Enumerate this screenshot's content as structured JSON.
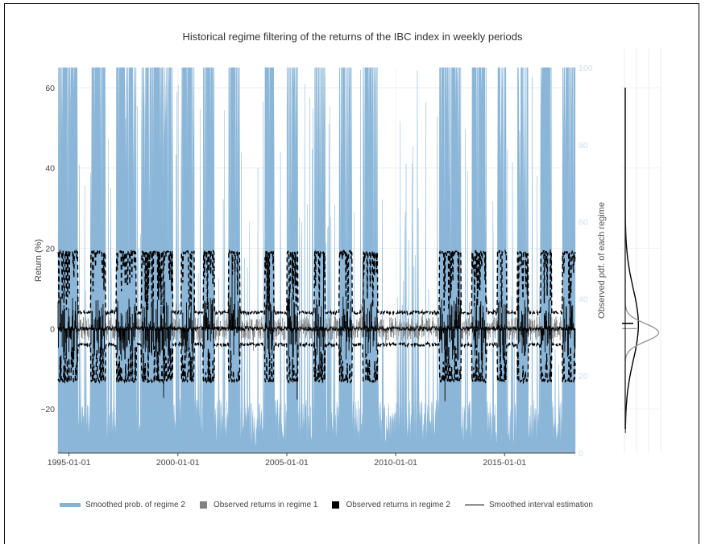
{
  "chart_data": {
    "type": "area",
    "title": "Historical regime filtering of the returns of the IBC index in weekly periods",
    "xlabel": "",
    "ylabel": "Return (%)",
    "y2label": "Observed pdf. of each regime",
    "x_ticks": [
      "1995-01-01",
      "2000-01-01",
      "2005-01-01",
      "2010-01-01",
      "2015-01-01"
    ],
    "x_range": [
      "1994-07-01",
      "2018-04-01"
    ],
    "y_ticks": [
      60,
      40,
      20,
      0,
      -20
    ],
    "y_tick_labels": [
      "60",
      "40",
      "20",
      "0",
      "−20"
    ],
    "ylim": [
      -31,
      65
    ],
    "y2_ticks": [
      100,
      80,
      60,
      40,
      20,
      0
    ],
    "y2lim": [
      0,
      100
    ],
    "grid": true,
    "legend_position": "bottom",
    "colors": {
      "regime2_prob": "#85b3d6",
      "regime1_returns": "#808080",
      "regime2_returns": "#000000",
      "interval": "#000000"
    },
    "series": [
      {
        "name": "Smoothed prob. of regime 2",
        "kind": "area",
        "axis": "y2",
        "approx_high_prob_periods": [
          [
            "1994-07-01",
            "1995-06-01"
          ],
          [
            "1996-01-01",
            "1996-09-01"
          ],
          [
            "1997-03-01",
            "1998-02-01"
          ],
          [
            "1998-05-01",
            "1999-10-01"
          ],
          [
            "2000-03-01",
            "2000-10-01"
          ],
          [
            "2001-03-01",
            "2001-09-01"
          ],
          [
            "2002-05-01",
            "2002-11-01"
          ],
          [
            "2004-01-01",
            "2004-06-01"
          ],
          [
            "2005-01-01",
            "2005-07-01"
          ],
          [
            "2006-04-01",
            "2006-10-01"
          ],
          [
            "2007-06-01",
            "2008-01-01"
          ],
          [
            "2008-07-01",
            "2009-03-01"
          ],
          [
            "2012-01-01",
            "2013-01-01"
          ],
          [
            "2013-07-01",
            "2014-03-01"
          ],
          [
            "2014-09-01",
            "2015-02-01"
          ],
          [
            "2015-08-01",
            "2016-02-01"
          ],
          [
            "2016-09-01",
            "2017-03-01"
          ],
          [
            "2017-09-01",
            "2018-04-01"
          ]
        ]
      },
      {
        "name": "Observed returns in regime 1",
        "kind": "bar",
        "axis": "y",
        "typical_abs_return": 3
      },
      {
        "name": "Observed returns in regime 2",
        "kind": "bar",
        "axis": "y",
        "typical_abs_return": 8
      },
      {
        "name": "Smoothed interval estimation",
        "kind": "dashed-band",
        "axis": "y",
        "regime1_band": [
          -4,
          4
        ],
        "regime2_band": [
          -13,
          19
        ]
      }
    ],
    "side_panel": {
      "type": "density",
      "regime1": {
        "mean": -1,
        "sd": 2.2
      },
      "regime2": {
        "mean": 1,
        "sd": 9
      }
    }
  },
  "legend": {
    "items": [
      {
        "label": "Smoothed prob. of regime 2",
        "swatch": "bar",
        "color": "#85b3d6"
      },
      {
        "label": "Observed returns in regime 1",
        "swatch": "square",
        "color": "#808080"
      },
      {
        "label": "Observed returns in regime 2",
        "swatch": "square",
        "color": "#000000"
      },
      {
        "label": "Smoothed interval estimation",
        "swatch": "line",
        "color": "#000000"
      }
    ]
  }
}
